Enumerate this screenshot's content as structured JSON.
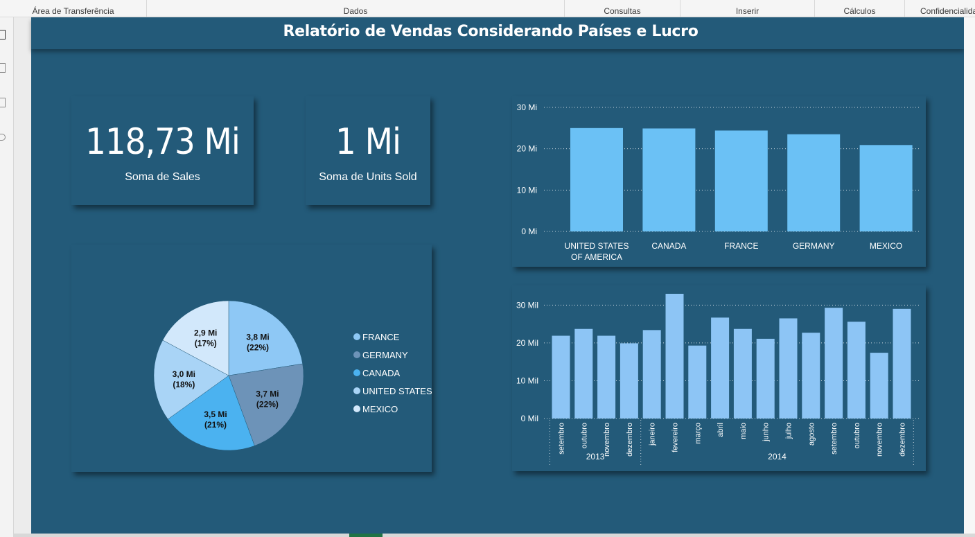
{
  "ribbon": {
    "groups": [
      "Área de Transferência",
      "Dados",
      "Consultas",
      "Inserir",
      "Cálculos",
      "Confidencialidade"
    ]
  },
  "report": {
    "title": "Relatório de Vendas Considerando Países e Lucro",
    "background": "#235a79"
  },
  "cards": [
    {
      "value": "118,73 Mi",
      "label": "Soma de  Sales"
    },
    {
      "value": "1 Mi",
      "label": "Soma de Units Sold"
    }
  ],
  "chart_data": [
    {
      "type": "bar",
      "categories": [
        [
          "UNITED STATES",
          "OF AMERICA"
        ],
        [
          "CANADA"
        ],
        [
          "FRANCE"
        ],
        [
          "GERMANY"
        ],
        [
          "MEXICO"
        ]
      ],
      "values": [
        25.0,
        24.9,
        24.4,
        23.5,
        20.9
      ],
      "y_ticks": [
        "0 Mi",
        "10 Mi",
        "20 Mi",
        "30 Mi"
      ],
      "ylim": [
        0,
        30
      ],
      "grid": true,
      "color": "#6bc1f5"
    },
    {
      "type": "pie",
      "slices": [
        {
          "name": "FRANCE",
          "value": 3.8,
          "label": "3,8 Mi",
          "pct": "(22%)",
          "color": "#8ec8f5"
        },
        {
          "name": "GERMANY",
          "value": 3.7,
          "label": "3,7 Mi",
          "pct": "(22%)",
          "color": "#6d93b8"
        },
        {
          "name": "CANADA",
          "value": 3.5,
          "label": "3,5 Mi",
          "pct": "(21%)",
          "color": "#4bb2f0"
        },
        {
          "name": "UNITED STATES OF AMERICA",
          "value": 3.0,
          "label": "3,0 Mi",
          "pct": "(18%)",
          "color": "#a9d4f6"
        },
        {
          "name": "MEXICO",
          "value": 2.9,
          "label": "2,9 Mi",
          "pct": "(17%)",
          "color": "#d2e8fb"
        }
      ],
      "legend": [
        "FRANCE",
        "GERMANY",
        "CANADA",
        "UNITED STATES OF ...",
        "MEXICO"
      ],
      "legend_position": "right"
    },
    {
      "type": "bar",
      "categories": [
        "setembro",
        "outubro",
        "novembro",
        "dezembro",
        "janeiro",
        "fevereiro",
        "março",
        "abril",
        "maio",
        "junho",
        "julho",
        "agosto",
        "setembro",
        "outubro",
        "novembro",
        "dezembro"
      ],
      "values": [
        21.9,
        23.7,
        21.9,
        19.9,
        23.4,
        33.0,
        19.3,
        26.7,
        23.7,
        21.1,
        26.5,
        22.7,
        29.3,
        25.6,
        17.4,
        29.0
      ],
      "groups": [
        {
          "label": "2013",
          "count": 4
        },
        {
          "label": "2014",
          "count": 12
        }
      ],
      "y_ticks": [
        "0 Mil",
        "10 Mil",
        "20 Mil",
        "30 Mil"
      ],
      "ylim": [
        0,
        33
      ],
      "grid": true,
      "color": "#8dc5f5"
    }
  ]
}
